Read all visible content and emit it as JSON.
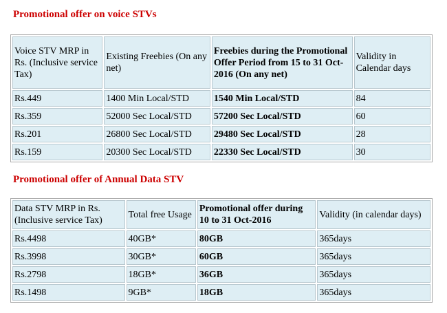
{
  "voice": {
    "title": "Promotional offer on voice STVs",
    "headers": {
      "mrp": "Voice STV MRP in Rs. (Inclusive service Tax)",
      "existing": "Existing Freebies (On any net)",
      "promo": "Freebies during the Promotional Offer Period from 15 to 31 Oct-2016 (On any net)",
      "validity": "Validity in Calendar days"
    },
    "rows": [
      {
        "mrp": "Rs.449",
        "existing": "1400 Min Local/STD",
        "promo": "1540 Min Local/STD",
        "validity": "84"
      },
      {
        "mrp": "Rs.359",
        "existing": "52000 Sec Local/STD",
        "promo": "57200 Sec Local/STD",
        "validity": "60"
      },
      {
        "mrp": "Rs.201",
        "existing": "26800 Sec Local/STD",
        "promo": "29480 Sec Local/STD",
        "validity": "28"
      },
      {
        "mrp": "Rs.159",
        "existing": "20300 Sec Local/STD",
        "promo": "22330 Sec Local/STD",
        "validity": "30"
      }
    ]
  },
  "data": {
    "title": "Promotional offer of Annual Data STV",
    "headers": {
      "mrp": "Data STV MRP in Rs. (Inclusive service Tax)",
      "usage": "Total free Usage",
      "promo": "Promotional offer during 10 to 31 Oct-2016",
      "validity": "Validity (in calendar days)"
    },
    "rows": [
      {
        "mrp": "Rs.4498",
        "usage": "40GB*",
        "promo": "80GB",
        "validity": "365days"
      },
      {
        "mrp": "Rs.3998",
        "usage": "30GB*",
        "promo": "60GB",
        "validity": "365days"
      },
      {
        "mrp": "Rs.2798",
        "usage": "18GB*",
        "promo": "36GB",
        "validity": "365days"
      },
      {
        "mrp": "Rs.1498",
        "usage": "9GB*",
        "promo": "18GB",
        "validity": "365days"
      }
    ]
  }
}
